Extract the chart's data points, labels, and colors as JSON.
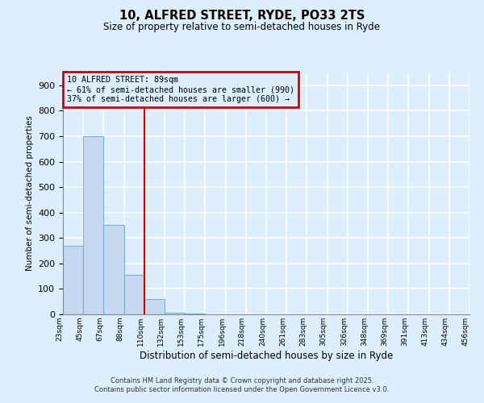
{
  "title": "10, ALFRED STREET, RYDE, PO33 2TS",
  "subtitle": "Size of property relative to semi-detached houses in Ryde",
  "xlabel": "Distribution of semi-detached houses by size in Ryde",
  "ylabel": "Number of semi-detached properties",
  "bar_values": [
    270,
    700,
    350,
    155,
    60,
    5,
    2,
    1,
    1,
    0,
    0,
    0,
    0,
    0,
    0,
    0,
    0,
    0,
    0,
    0
  ],
  "bar_color": "#c6d9f0",
  "bar_edge_color": "#7aafd4",
  "x_labels": [
    "23sqm",
    "45sqm",
    "67sqm",
    "88sqm",
    "110sqm",
    "132sqm",
    "153sqm",
    "175sqm",
    "196sqm",
    "218sqm",
    "240sqm",
    "261sqm",
    "283sqm",
    "305sqm",
    "326sqm",
    "348sqm",
    "369sqm",
    "391sqm",
    "413sqm",
    "434sqm",
    "456sqm"
  ],
  "ylim": [
    0,
    950
  ],
  "yticks": [
    0,
    100,
    200,
    300,
    400,
    500,
    600,
    700,
    800,
    900
  ],
  "vline_x": 3.5,
  "vline_color": "#cc0000",
  "annotation_title": "10 ALFRED STREET: 89sqm",
  "annotation_line1": "← 61% of semi-detached houses are smaller (990)",
  "annotation_line2": "37% of semi-detached houses are larger (600) →",
  "annotation_box_color": "#cc0000",
  "background_color": "#ddeeff",
  "grid_color": "#ffffff",
  "footer_line1": "Contains HM Land Registry data © Crown copyright and database right 2025.",
  "footer_line2": "Contains public sector information licensed under the Open Government Licence v3.0."
}
